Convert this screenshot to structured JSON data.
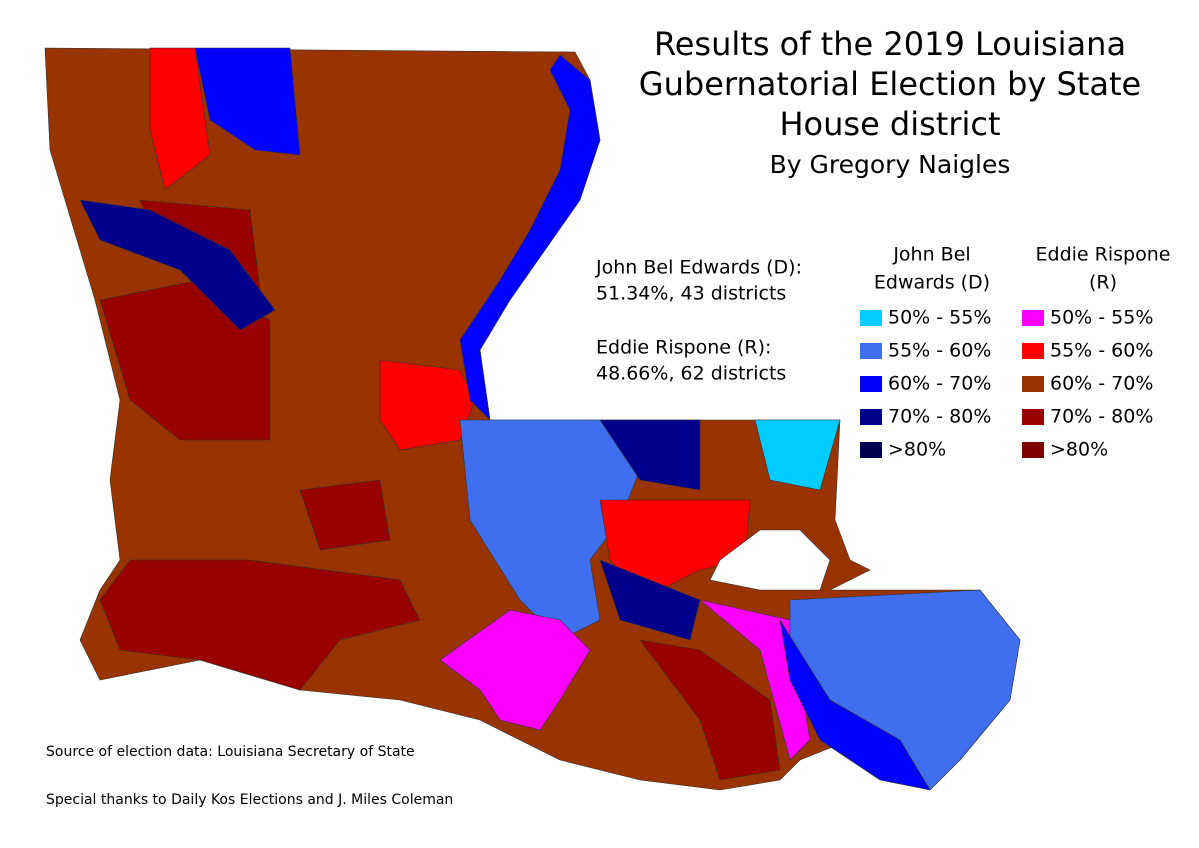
{
  "title": [
    "Results of the 2019 Louisiana",
    "Gubernatorial Election by State",
    "House district"
  ],
  "subtitle": "By Gregory Naigles",
  "summary": [
    {
      "candidate": "John Bel Edwards (D):",
      "result": "51.34%, 43 districts"
    },
    {
      "candidate": "Eddie Rispone (R):",
      "result": "48.66%, 62 districts"
    }
  ],
  "legend": {
    "columns": [
      {
        "header": [
          "John Bel",
          "Edwards (D)"
        ],
        "items": [
          {
            "label": "50% - 55%",
            "color": "#00ccff"
          },
          {
            "label": "55% - 60%",
            "color": "#3f6fee"
          },
          {
            "label": "60% - 70%",
            "color": "#0000ff"
          },
          {
            "label": "70% - 80%",
            "color": "#00008b"
          },
          {
            "label": ">80%",
            "color": "#000050"
          }
        ]
      },
      {
        "header": [
          "Eddie Rispone",
          "(R)"
        ],
        "items": [
          {
            "label": "50% - 55%",
            "color": "#ff00ff"
          },
          {
            "label": "55% - 60%",
            "color": "#ff0000"
          },
          {
            "label": "60% - 70%",
            "color": "#993300"
          },
          {
            "label": "70% - 80%",
            "color": "#990000"
          },
          {
            "label": ">80%",
            "color": "#800000"
          }
        ]
      }
    ]
  },
  "notes": [
    "Source of election data: Louisiana Secretary of State",
    "Special thanks to Daily Kos Elections and J. Miles Coleman"
  ]
}
